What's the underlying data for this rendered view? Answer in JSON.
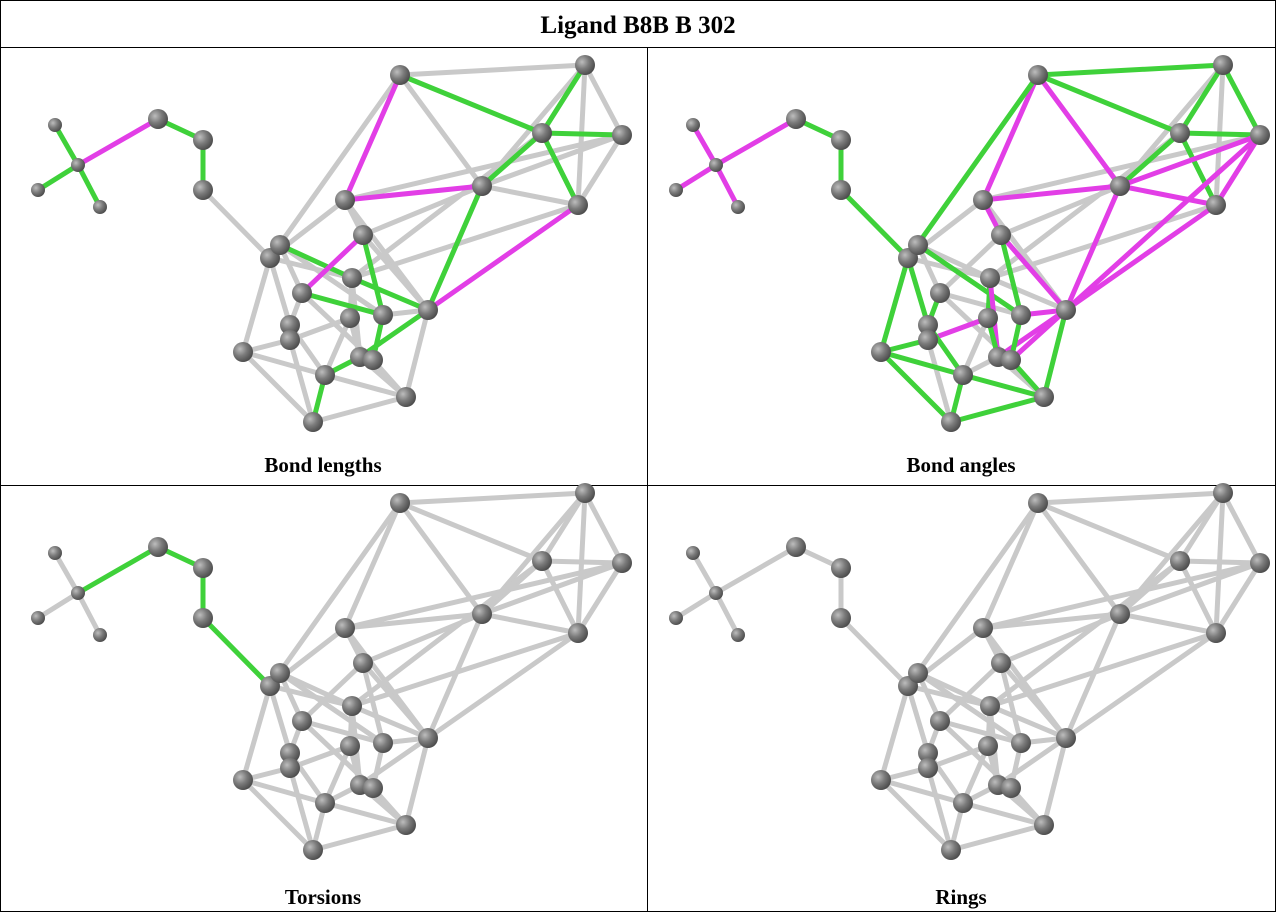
{
  "header": {
    "title": "Ligand B8B B 302"
  },
  "panels": [
    {
      "caption": "Bond lengths"
    },
    {
      "caption": "Bond angles"
    },
    {
      "caption": "Torsions"
    },
    {
      "caption": "Rings"
    }
  ]
}
